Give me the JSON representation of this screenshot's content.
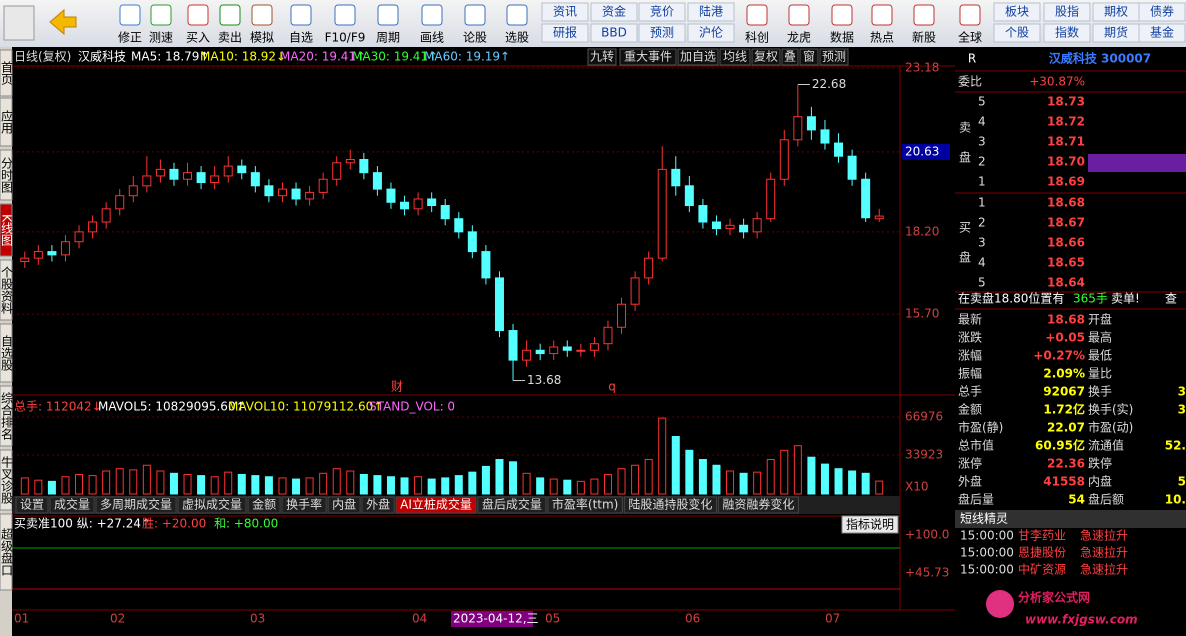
{
  "toolbar": {
    "main": [
      "修正",
      "测速",
      "买入",
      "卖出",
      "模拟",
      "自选",
      "F10/F9",
      "周期",
      "画线",
      "论股",
      "选股"
    ],
    "grid1": [
      "资讯",
      "资金",
      "竞价",
      "陆港",
      "研报",
      "BBD",
      "预测",
      "沪伦"
    ],
    "icons2": [
      "科创",
      "龙虎",
      "数据",
      "热点",
      "新股",
      "全球"
    ],
    "grid2": [
      "板块",
      "股指",
      "期权",
      "债券",
      "个股",
      "指数",
      "期货",
      "基金"
    ]
  },
  "side_tabs": [
    "首页",
    "应用",
    "分时图",
    "K线图",
    "个股资料",
    "自选股",
    "综合排名",
    "牛叉诊股",
    "超级盘口"
  ],
  "chart": {
    "header": [
      "日线(复权)",
      "汉威科技",
      "MA5: 18.79↑",
      "MA10: 18.92↓",
      "MA20: 19.41↑",
      "MA30: 19.41↑",
      "MA60: 19.19↑"
    ],
    "buttons": [
      "九转",
      "重大事件",
      "加自选",
      "均线",
      "复权",
      "叠",
      "窗",
      "预测"
    ],
    "ylim": [
      13.24,
      23.79
    ],
    "yticks": [
      23.18,
      20.63,
      {
        "value": 18.2,
        "label": "18.20"
      },
      {
        "value": 15.7,
        "label": "15.70"
      }
    ],
    "annotations": [
      "22.68",
      "13.68",
      "财",
      "q"
    ],
    "candles": [
      [
        17.3,
        17.4,
        17.6,
        17.1
      ],
      [
        17.4,
        17.6,
        17.8,
        17.2
      ],
      [
        17.6,
        17.5,
        17.8,
        17.3
      ],
      [
        17.5,
        17.9,
        18.1,
        17.3
      ],
      [
        17.9,
        18.2,
        18.4,
        17.7
      ],
      [
        18.2,
        18.5,
        18.7,
        18.0
      ],
      [
        18.5,
        18.9,
        19.1,
        18.3
      ],
      [
        18.9,
        19.3,
        19.5,
        18.7
      ],
      [
        19.3,
        19.6,
        19.9,
        19.1
      ],
      [
        19.6,
        19.9,
        20.5,
        19.4
      ],
      [
        19.9,
        20.1,
        20.4,
        19.7
      ],
      [
        20.1,
        19.8,
        20.3,
        19.6
      ],
      [
        19.8,
        20.0,
        20.3,
        19.6
      ],
      [
        20.0,
        19.7,
        20.2,
        19.5
      ],
      [
        19.7,
        19.9,
        20.2,
        19.5
      ],
      [
        19.9,
        20.2,
        20.5,
        19.7
      ],
      [
        20.2,
        20.0,
        20.4,
        19.8
      ],
      [
        20.0,
        19.6,
        20.2,
        19.4
      ],
      [
        19.6,
        19.3,
        19.8,
        19.1
      ],
      [
        19.3,
        19.5,
        19.7,
        19.1
      ],
      [
        19.5,
        19.2,
        19.7,
        19.0
      ],
      [
        19.2,
        19.4,
        19.6,
        19.0
      ],
      [
        19.4,
        19.8,
        20.0,
        19.2
      ],
      [
        19.8,
        20.3,
        20.5,
        19.6
      ],
      [
        20.3,
        20.4,
        20.7,
        20.1
      ],
      [
        20.4,
        20.0,
        20.6,
        19.8
      ],
      [
        20.0,
        19.5,
        20.2,
        19.3
      ],
      [
        19.5,
        19.1,
        19.7,
        18.9
      ],
      [
        19.1,
        18.9,
        19.3,
        18.7
      ],
      [
        18.9,
        19.2,
        19.4,
        18.7
      ],
      [
        19.2,
        19.0,
        19.4,
        18.8
      ],
      [
        19.0,
        18.6,
        19.2,
        18.4
      ],
      [
        18.6,
        18.2,
        18.8,
        18.0
      ],
      [
        18.2,
        17.6,
        18.4,
        17.4
      ],
      [
        17.6,
        16.8,
        17.8,
        16.6
      ],
      [
        16.8,
        15.2,
        17.0,
        15.0
      ],
      [
        15.2,
        14.3,
        15.4,
        13.68
      ],
      [
        14.3,
        14.6,
        14.9,
        14.1
      ],
      [
        14.6,
        14.5,
        14.8,
        14.3
      ],
      [
        14.5,
        14.7,
        14.9,
        14.3
      ],
      [
        14.7,
        14.6,
        14.9,
        14.4
      ],
      [
        14.6,
        14.6,
        14.8,
        14.4
      ],
      [
        14.6,
        14.8,
        15.0,
        14.4
      ],
      [
        14.8,
        15.3,
        15.5,
        14.6
      ],
      [
        15.3,
        16.0,
        16.2,
        15.1
      ],
      [
        16.0,
        16.8,
        17.0,
        15.8
      ],
      [
        16.8,
        17.4,
        17.6,
        16.6
      ],
      [
        17.4,
        20.1,
        20.8,
        17.3
      ],
      [
        20.1,
        19.6,
        20.5,
        19.3
      ],
      [
        19.6,
        19.0,
        19.9,
        18.8
      ],
      [
        19.0,
        18.5,
        19.2,
        18.3
      ],
      [
        18.5,
        18.3,
        18.7,
        18.1
      ],
      [
        18.3,
        18.4,
        18.6,
        18.1
      ],
      [
        18.4,
        18.2,
        18.6,
        18.0
      ],
      [
        18.2,
        18.6,
        18.8,
        18.0
      ],
      [
        18.6,
        19.8,
        20.0,
        18.5
      ],
      [
        19.8,
        21.0,
        21.3,
        19.6
      ],
      [
        21.0,
        21.7,
        22.68,
        20.8
      ],
      [
        21.7,
        21.3,
        22.0,
        21.0
      ],
      [
        21.3,
        20.9,
        21.6,
        20.7
      ],
      [
        20.9,
        20.5,
        21.2,
        20.3
      ],
      [
        20.5,
        19.8,
        20.7,
        19.6
      ],
      [
        19.8,
        18.63,
        20.0,
        18.5
      ],
      [
        18.6,
        18.68,
        18.9,
        18.5
      ]
    ],
    "volume": {
      "header": [
        "总手: 112042↓",
        "MAVOL5: 10829095.60↑",
        "MAVOL10: 11079112.60↑",
        "STAND_VOL: 0"
      ],
      "ylim": [
        0,
        66976
      ],
      "yticks": [
        66976,
        33923
      ],
      "unit": "X10",
      "values": [
        14000,
        12000,
        11000,
        15000,
        17000,
        16000,
        20000,
        22000,
        21000,
        25000,
        20000,
        18000,
        17000,
        16000,
        15000,
        19000,
        17000,
        16000,
        15000,
        14000,
        13000,
        14000,
        18000,
        22000,
        20000,
        17000,
        16000,
        15000,
        14000,
        15000,
        13000,
        14000,
        16000,
        19000,
        24000,
        30000,
        28000,
        18000,
        14000,
        13000,
        12000,
        11000,
        13000,
        17000,
        22000,
        25000,
        30000,
        66000,
        50000,
        38000,
        30000,
        25000,
        20000,
        18000,
        19000,
        30000,
        38000,
        42000,
        32000,
        26000,
        22000,
        20000,
        18000,
        11204
      ]
    },
    "tabs": [
      "设置",
      "成交量",
      "多周期成交量",
      "虚拟成交量",
      "金额",
      "换手率",
      "内盘",
      "外盘",
      "AI立桩成交量",
      "盘后成交量",
      "市盈率(ttm)",
      "陆股通持股变化",
      "融资融券变化"
    ],
    "indicator": {
      "header": [
        "买卖准100 纵: +27.24↑",
        "胜: +20.00",
        "和: +80.00"
      ],
      "button": "指标说明",
      "ticks": [
        "+100.0",
        "+45.73"
      ]
    },
    "dates": [
      "01",
      "02",
      "03",
      "04",
      "2023-04-12,三",
      "05",
      "06",
      "07"
    ]
  },
  "quote": {
    "flag": "R",
    "title": "汉威科技 300007",
    "weibi_label": "委比",
    "weibi": "+30.87%",
    "sell_label": [
      "卖",
      "盘"
    ],
    "sell": [
      [
        "5",
        "18.73"
      ],
      [
        "4",
        "18.72"
      ],
      [
        "3",
        "18.71"
      ],
      [
        "2",
        "18.70"
      ],
      [
        "1",
        "18.69"
      ]
    ],
    "buy_label": [
      "买",
      "盘"
    ],
    "buy": [
      [
        "1",
        "18.68"
      ],
      [
        "2",
        "18.67"
      ],
      [
        "3",
        "18.66"
      ],
      [
        "4",
        "18.65"
      ],
      [
        "5",
        "18.64"
      ]
    ],
    "alert": [
      "在卖盘18.80位置有",
      "365手",
      "卖单!",
      "查"
    ],
    "stats": [
      [
        "最新",
        "18.68",
        "开盘",
        ""
      ],
      [
        "涨跌",
        "+0.05",
        "最高",
        ""
      ],
      [
        "涨幅",
        "+0.27%",
        "最低",
        ""
      ],
      [
        "振幅",
        "2.09%",
        "量比",
        ""
      ],
      [
        "总手",
        "92067",
        "换手",
        "3"
      ],
      [
        "金额",
        "1.72亿",
        "换手(实)",
        "3"
      ],
      [
        "市盈(静)",
        "22.07",
        "市盈(动)",
        ""
      ],
      [
        "总市值",
        "60.95亿",
        "流通值",
        "52."
      ],
      [
        "涨停",
        "22.36",
        "跌停",
        ""
      ],
      [
        "外盘",
        "41558",
        "内盘",
        "5"
      ],
      [
        "盘后量",
        "54",
        "盘后额",
        "10."
      ]
    ],
    "spirit_title": "短线精灵",
    "spirit": [
      [
        "15:00:00",
        "甘李药业",
        "急速拉升"
      ],
      [
        "15:00:00",
        "恩捷股份",
        "急速拉升"
      ],
      [
        "15:00:00",
        "中矿资源",
        "急速拉升"
      ]
    ],
    "watermark": [
      "分析家公式网",
      "www.fxjgsw.com"
    ]
  }
}
